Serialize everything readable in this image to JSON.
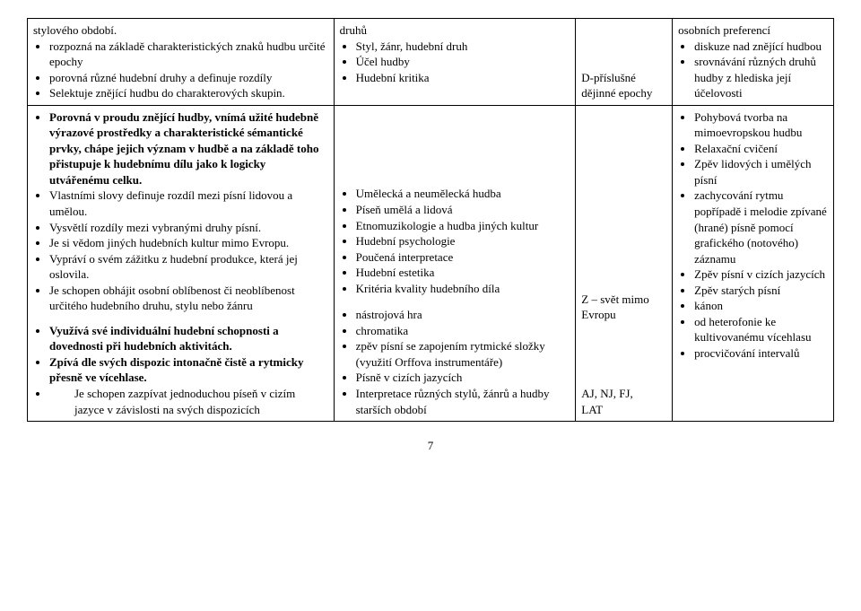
{
  "row1": {
    "col1": {
      "lead": "stylového období.",
      "items": [
        "rozpozná na základě charakteristických znaků hudbu určité epochy",
        "porovná různé hudební druhy a definuje rozdíly",
        "Selektuje znějící hudbu do charakterových skupin."
      ]
    },
    "col2": {
      "lead": "druhů",
      "items": [
        "Styl, žánr, hudební druh",
        "Účel hudby",
        "Hudební kritika"
      ]
    },
    "col3": {
      "lines": [
        "D-příslušné",
        "dějinné epochy"
      ]
    },
    "col4": {
      "lead": "osobních preferencí",
      "items": [
        "diskuze nad znějící hudbou",
        "srovnávání různých druhů hudby z hlediska její účelovosti"
      ]
    }
  },
  "row2": {
    "col1": {
      "block1_items": [
        "Porovná v proudu znějící hudby, vnímá užité hudebně výrazové prostředky  a charakteristické sémantické prvky, chápe jejich význam v hudbě a na základě toho přistupuje k hudebnímu dílu jako k logicky utvářenému celku.",
        "Vlastními slovy definuje rozdíl mezi písní lidovou a umělou.",
        "Vysvětlí rozdíly mezi vybranými druhy písní.",
        "Je si vědom jiných hudebních kultur mimo Evropu.",
        "Vypráví o svém zážitku z hudební produkce, která jej oslovila.",
        "Je schopen obhájit osobní oblíbenost či neoblíbenost určitého hudebního druhu, stylu nebo žánru"
      ],
      "block2_items": [
        "Využívá své individuální hudební schopnosti a dovednosti při hudebních aktivitách.",
        "Zpívá dle svých dispozic intonačně čistě a rytmicky přesně ve vícehlase.",
        "Je schopen zazpívat jednoduchou píseň v cizím jazyce v závislosti na svých dispozicích"
      ]
    },
    "col2": {
      "group1": [
        "Umělecká a neumělecká hudba",
        "Píseň umělá a lidová",
        "Etnomuzikologie a hudba jiných kultur",
        "Hudební psychologie",
        "Poučená interpretace",
        "Hudební estetika",
        "Kritéria kvality hudebního díla"
      ],
      "group2": [
        "nástrojová hra",
        "chromatika",
        "zpěv písní se zapojením rytmické složky (využití Orffova instrumentáře)",
        "Písně v cizích jazycích",
        "Interpretace různých stylů, žánrů a hudby starších období"
      ]
    },
    "col3": {
      "block1": [
        "Z – svět mimo",
        "Evropu"
      ],
      "block2": [
        "AJ, NJ, FJ,",
        "LAT"
      ]
    },
    "col4": {
      "items": [
        "Pohybová tvorba na mimoevropskou hudbu",
        "Relaxační cvičení",
        "Zpěv lidových i umělých písní",
        "zachycování rytmu popřípadě i melodie zpívané (hrané) písně pomocí grafického (notového) záznamu",
        "Zpěv písní v cizích jazycích",
        "Zpěv starých písní",
        "kánon",
        "od heterofonie ke kultivovanému vícehlasu",
        "procvičování intervalů"
      ]
    }
  },
  "pageNumber": "7",
  "layout": {
    "colWidths": [
      "38%",
      "30%",
      "12%",
      "20%"
    ]
  }
}
